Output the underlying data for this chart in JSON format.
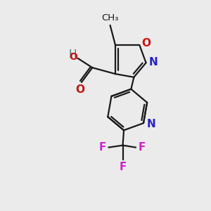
{
  "background_color": "#ebebeb",
  "bond_color": "#1a1a1a",
  "N_color": "#2222cc",
  "O_color": "#cc1111",
  "F_color": "#cc22cc",
  "H_color": "#4a7a7a",
  "figsize": [
    3.0,
    3.0
  ],
  "dpi": 100,
  "xlim": [
    0,
    10
  ],
  "ylim": [
    0,
    10
  ],
  "lw": 1.6,
  "fs": 11
}
